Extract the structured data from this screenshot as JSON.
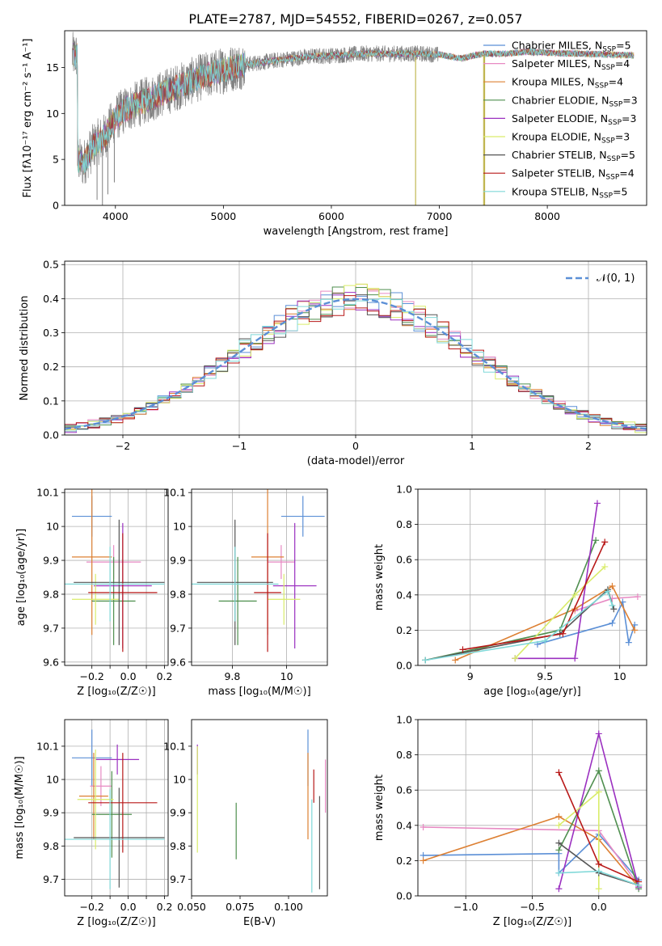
{
  "title": "PLATE=2787, MJD=54552, FIBERID=0267, z=0.057",
  "colors": {
    "Chabrier MILES": "#5b8fd6",
    "Salpeter MILES": "#e78ac3",
    "Kroupa MILES": "#dd8033",
    "Chabrier ELODIE": "#4f8f4f",
    "Salpeter ELODIE": "#9b30c0",
    "Kroupa ELODIE": "#d9ec6a",
    "Chabrier STELIB": "#555555",
    "Salpeter STELIB": "#b81818",
    "Kroupa STELIB": "#7fd8d8",
    "data": "#808080",
    "normal": "#5b8fd6"
  },
  "chart_data": [
    {
      "type": "line",
      "xlabel": "wavelength [Angstrom, rest frame]",
      "ylabel": "Flux [fλ10⁻¹⁷ erg cm⁻² s⁻¹ A⁻¹]",
      "xlim": [
        3530,
        8920
      ],
      "ylim": [
        0,
        19
      ],
      "xticks": [
        4000,
        5000,
        6000,
        7000,
        8000
      ],
      "yticks": [
        0,
        5,
        10,
        15
      ],
      "grid": false,
      "legend_placement": "right",
      "legend": [
        "Chabrier MILES, N_SSP=5",
        "Salpeter MILES, N_SSP=4",
        "Kroupa MILES, N_SSP=4",
        "Chabrier ELODIE, N_SSP=3",
        "Salpeter ELODIE, N_SSP=3",
        "Kroupa ELODIE, N_SSP=3",
        "Chabrier STELIB, N_SSP=5",
        "Salpeter STELIB, N_SSP=4",
        "Kroupa STELIB, N_SSP=5"
      ],
      "legend_nssp": [
        5,
        4,
        4,
        3,
        3,
        3,
        5,
        4,
        5
      ],
      "continuum_points": [
        [
          3650,
          5
        ],
        [
          3700,
          4.5
        ],
        [
          3800,
          6.5
        ],
        [
          3900,
          7.5
        ],
        [
          4000,
          9.5
        ],
        [
          4100,
          10.5
        ],
        [
          4300,
          11.5
        ],
        [
          4500,
          12.5
        ],
        [
          4800,
          14
        ],
        [
          5000,
          14.7
        ],
        [
          5200,
          15.3
        ],
        [
          5500,
          15.8
        ],
        [
          5800,
          16.2
        ],
        [
          6000,
          16.3
        ],
        [
          6300,
          16.5
        ],
        [
          6600,
          16.5
        ],
        [
          6800,
          16.5
        ],
        [
          7000,
          16.4
        ],
        [
          7200,
          16
        ],
        [
          7400,
          16.5
        ],
        [
          7600,
          16.5
        ],
        [
          7800,
          16.7
        ],
        [
          8000,
          16.6
        ],
        [
          8300,
          16.5
        ],
        [
          8600,
          16.4
        ],
        [
          8800,
          16.3
        ]
      ],
      "data_xrange": [
        3600,
        8800
      ],
      "spikes": [
        [
          3830,
          0.6
        ],
        [
          3880,
          0
        ],
        [
          3930,
          1.2
        ],
        [
          3990,
          2.5
        ],
        [
          6780,
          0
        ],
        [
          7410,
          0
        ],
        [
          7420,
          0
        ]
      ]
    },
    {
      "type": "step",
      "xlabel": "(data-model)/error",
      "ylabel": "Normed distribution",
      "xlim": [
        -2.5,
        2.5
      ],
      "ylim": [
        0,
        0.51
      ],
      "xticks": [
        -2,
        -1,
        0,
        1,
        2
      ],
      "yticks": [
        0.0,
        0.1,
        0.2,
        0.3,
        0.4,
        0.5
      ],
      "grid": true,
      "legend_placement": "upper right",
      "legend": [
        "𝒩(0, 1)"
      ],
      "bin_width": 0.1,
      "bins_from": -2.5
    },
    {
      "type": "errorbar",
      "xlabel": "Z [log₁₀(Z/Z☉)]",
      "ylabel": "age  [log₁₀(age/yr)]",
      "xlim": [
        -0.35,
        0.22
      ],
      "ylim": [
        9.59,
        10.11
      ],
      "xticks": [
        -0.2,
        -0.1,
        0.0,
        0.1,
        0.2
      ],
      "xticklabels": [
        "−0.2",
        "",
        "0.0",
        "",
        "0.2"
      ],
      "yticks": [
        9.6,
        9.7,
        9.8,
        9.9,
        10.0,
        10.1
      ],
      "grid": true,
      "points": [
        {
          "name": "Chabrier MILES",
          "x": -0.2,
          "xerr": 0.11,
          "y": 10.03,
          "yerr": 0.06
        },
        {
          "name": "Salpeter MILES",
          "x": -0.08,
          "xerr": 0.15,
          "y": 9.895,
          "yerr": 0.05
        },
        {
          "name": "Kroupa MILES",
          "x": -0.2,
          "xerr": 0.11,
          "y": 9.91,
          "yerr": 0.23
        },
        {
          "name": "Chabrier ELODIE",
          "x": -0.08,
          "xerr": 0.12,
          "y": 9.78,
          "yerr": 0.13
        },
        {
          "name": "Salpeter ELODIE",
          "x": -0.03,
          "xerr": 0.16,
          "y": 9.825,
          "yerr": 0.185
        },
        {
          "name": "Kroupa ELODIE",
          "x": -0.18,
          "xerr": 0.13,
          "y": 9.785,
          "yerr": 0.075
        },
        {
          "name": "Chabrier STELIB",
          "x": -0.05,
          "xerr": 0.25,
          "y": 9.835,
          "yerr": 0.185
        },
        {
          "name": "Salpeter STELIB",
          "x": -0.03,
          "xerr": 0.19,
          "y": 9.805,
          "yerr": 0.175
        },
        {
          "name": "Kroupa STELIB",
          "x": -0.1,
          "xerr": 0.3,
          "y": 9.83,
          "yerr": 0.11
        }
      ]
    },
    {
      "type": "errorbar",
      "xlabel": "mass [log₁₀(M/M☉)]",
      "xlim": [
        9.65,
        10.15
      ],
      "ylim": [
        9.59,
        10.11
      ],
      "xticks": [
        9.8,
        10.0
      ],
      "yticks": [
        9.6,
        9.7,
        9.8,
        9.9,
        10.0,
        10.1
      ],
      "grid": true,
      "points": [
        {
          "name": "Chabrier MILES",
          "x": 10.06,
          "xerr": 0.08,
          "y": 10.03,
          "yerr": 0.06
        },
        {
          "name": "Salpeter MILES",
          "x": 9.98,
          "xerr": 0.05,
          "y": 9.895,
          "yerr": 0.05
        },
        {
          "name": "Kroupa MILES",
          "x": 9.93,
          "xerr": 0.06,
          "y": 9.91,
          "yerr": 0.23
        },
        {
          "name": "Chabrier ELODIE",
          "x": 9.82,
          "xerr": 0.07,
          "y": 9.78,
          "yerr": 0.13
        },
        {
          "name": "Salpeter ELODIE",
          "x": 10.03,
          "xerr": 0.08,
          "y": 9.825,
          "yerr": 0.185
        },
        {
          "name": "Kroupa ELODIE",
          "x": 9.99,
          "xerr": 0.06,
          "y": 9.785,
          "yerr": 0.075
        },
        {
          "name": "Chabrier STELIB",
          "x": 9.81,
          "xerr": 0.14,
          "y": 9.835,
          "yerr": 0.185
        },
        {
          "name": "Salpeter STELIB",
          "x": 9.93,
          "xerr": 0.05,
          "y": 9.805,
          "yerr": 0.175
        },
        {
          "name": "Kroupa STELIB",
          "x": 9.81,
          "xerr": 0.16,
          "y": 9.83,
          "yerr": 0.11
        }
      ]
    },
    {
      "type": "line",
      "xlabel": "age  [log₁₀(age/yr)]",
      "ylabel": "mass weight",
      "xlim": [
        8.65,
        10.18
      ],
      "ylim": [
        0,
        1
      ],
      "xticks": [
        9.0,
        9.5,
        10.0
      ],
      "yticks": [
        0.0,
        0.2,
        0.4,
        0.6,
        0.8,
        1.0
      ],
      "grid": true,
      "series": [
        {
          "name": "Chabrier MILES",
          "x": [
            9.45,
            9.95,
            10.02,
            10.06,
            10.1
          ],
          "y": [
            0.12,
            0.24,
            0.36,
            0.13,
            0.23
          ]
        },
        {
          "name": "Salpeter MILES",
          "x": [
            9.7,
            9.95,
            10.12
          ],
          "y": [
            0.31,
            0.38,
            0.39
          ]
        },
        {
          "name": "Kroupa MILES",
          "x": [
            8.9,
            9.7,
            9.95,
            10.1
          ],
          "y": [
            0.03,
            0.32,
            0.45,
            0.2
          ]
        },
        {
          "name": "Chabrier ELODIE",
          "x": [
            8.7,
            9.6,
            9.84
          ],
          "y": [
            0.03,
            0.2,
            0.71
          ]
        },
        {
          "name": "Salpeter ELODIE",
          "x": [
            9.3,
            9.7,
            9.85
          ],
          "y": [
            0.04,
            0.04,
            0.92
          ]
        },
        {
          "name": "Kroupa ELODIE",
          "x": [
            9.3,
            9.7,
            9.9
          ],
          "y": [
            0.04,
            0.4,
            0.56
          ]
        },
        {
          "name": "Chabrier STELIB",
          "x": [
            8.7,
            9.6,
            9.92,
            9.96
          ],
          "y": [
            0.03,
            0.18,
            0.43,
            0.32
          ]
        },
        {
          "name": "Salpeter STELIB",
          "x": [
            8.95,
            9.62,
            9.9
          ],
          "y": [
            0.09,
            0.18,
            0.7
          ]
        },
        {
          "name": "Kroupa STELIB",
          "x": [
            8.7,
            9.5,
            9.92,
            9.95
          ],
          "y": [
            0.03,
            0.14,
            0.42,
            0.34
          ]
        }
      ]
    },
    {
      "type": "errorbar",
      "xlabel": "Z [log₁₀(Z/Z☉)]",
      "ylabel": "mass [log₁₀(M/M☉)]",
      "xlim": [
        -0.35,
        0.22
      ],
      "ylim": [
        9.65,
        10.18
      ],
      "xticks": [
        -0.2,
        -0.1,
        0.0,
        0.1,
        0.2
      ],
      "xticklabels": [
        "−0.2",
        "",
        "0.0",
        "",
        "0.2"
      ],
      "yticks": [
        9.7,
        9.8,
        9.9,
        10.0,
        10.1
      ],
      "grid": true,
      "points": [
        {
          "name": "Chabrier MILES",
          "x": -0.2,
          "xerr": 0.11,
          "y": 10.065,
          "yerr": 0.085
        },
        {
          "name": "Salpeter MILES",
          "x": -0.15,
          "xerr": 0.06,
          "y": 9.98,
          "yerr": 0.06
        },
        {
          "name": "Kroupa MILES",
          "x": -0.19,
          "xerr": 0.08,
          "y": 9.95,
          "yerr": 0.13
        },
        {
          "name": "Chabrier ELODIE",
          "x": -0.09,
          "xerr": 0.11,
          "y": 9.895,
          "yerr": 0.13
        },
        {
          "name": "Salpeter ELODIE",
          "x": -0.06,
          "xerr": 0.12,
          "y": 10.06,
          "yerr": 0.045
        },
        {
          "name": "Kroupa ELODIE",
          "x": -0.18,
          "xerr": 0.1,
          "y": 9.94,
          "yerr": 0.15
        },
        {
          "name": "Chabrier STELIB",
          "x": -0.05,
          "xerr": 0.25,
          "y": 9.825,
          "yerr": 0.15
        },
        {
          "name": "Salpeter STELIB",
          "x": -0.03,
          "xerr": 0.19,
          "y": 9.93,
          "yerr": 0.15
        },
        {
          "name": "Kroupa STELIB",
          "x": -0.1,
          "xerr": 0.3,
          "y": 9.82,
          "yerr": 0.15
        }
      ]
    },
    {
      "type": "errorbar",
      "xlabel": "E(B-V)",
      "xlim": [
        0.05,
        0.12
      ],
      "ylim": [
        9.65,
        10.18
      ],
      "xticks": [
        0.05,
        0.075,
        0.1
      ],
      "xticklabels": [
        "0.050",
        "0.075",
        "0.100"
      ],
      "yticks": [
        9.7,
        9.8,
        9.9,
        10.0,
        10.1
      ],
      "grid": false,
      "points": [
        {
          "name": "Chabrier MILES",
          "x": 0.11,
          "xerr": 0,
          "y": 10.065,
          "yerr": 0.085
        },
        {
          "name": "Salpeter MILES",
          "x": 0.119,
          "xerr": 0,
          "y": 9.98,
          "yerr": 0.08
        },
        {
          "name": "Kroupa MILES",
          "x": 0.11,
          "xerr": 0,
          "y": 9.95,
          "yerr": 0.13
        },
        {
          "name": "Chabrier ELODIE",
          "x": 0.073,
          "xerr": 0,
          "y": 9.845,
          "yerr": 0.085
        },
        {
          "name": "Salpeter ELODIE",
          "x": 0.053,
          "xerr": 0,
          "y": 10.06,
          "yerr": 0.045
        },
        {
          "name": "Kroupa ELODIE",
          "x": 0.053,
          "xerr": 0,
          "y": 9.94,
          "yerr": 0.16
        },
        {
          "name": "Chabrier STELIB",
          "x": 0.116,
          "xerr": 0,
          "y": 9.81,
          "yerr": 0.14
        },
        {
          "name": "Salpeter STELIB",
          "x": 0.113,
          "xerr": 0,
          "y": 9.98,
          "yerr": 0.05
        },
        {
          "name": "Kroupa STELIB",
          "x": 0.112,
          "xerr": 0,
          "y": 9.8,
          "yerr": 0.14
        }
      ]
    },
    {
      "type": "line",
      "xlabel": "Z [log₁₀(Z/Z☉)]",
      "ylabel": "mass weight",
      "xlim": [
        -1.36,
        0.36
      ],
      "ylim": [
        0,
        1
      ],
      "xticks": [
        -1.0,
        -0.5,
        0.0
      ],
      "xticklabels": [
        "−1.0",
        "−0.5",
        "0.0"
      ],
      "yticks": [
        0.0,
        0.2,
        0.4,
        0.6,
        0.8,
        1.0
      ],
      "grid": true,
      "series": [
        {
          "name": "Chabrier MILES",
          "x": [
            -1.32,
            -0.3,
            -0.3,
            0.0,
            0.3
          ],
          "y": [
            0.23,
            0.24,
            0.13,
            0.35,
            0.09
          ]
        },
        {
          "name": "Salpeter MILES",
          "x": [
            -1.32,
            0.0,
            0.3
          ],
          "y": [
            0.39,
            0.37,
            0.06
          ]
        },
        {
          "name": "Kroupa MILES",
          "x": [
            -1.32,
            -0.3,
            0.0,
            0.3
          ],
          "y": [
            0.2,
            0.45,
            0.32,
            0.05
          ]
        },
        {
          "name": "Chabrier ELODIE",
          "x": [
            -0.3,
            0.0,
            0.3
          ],
          "y": [
            0.26,
            0.71,
            0.04
          ]
        },
        {
          "name": "Salpeter ELODIE",
          "x": [
            -0.3,
            0.0,
            0.3
          ],
          "y": [
            0.04,
            0.92,
            0.05
          ]
        },
        {
          "name": "Kroupa ELODIE",
          "x": [
            -0.3,
            0.0,
            0.0
          ],
          "y": [
            0.4,
            0.59,
            0.04
          ]
        },
        {
          "name": "Chabrier STELIB",
          "x": [
            -0.3,
            0.0,
            0.3
          ],
          "y": [
            0.3,
            0.13,
            0.06
          ]
        },
        {
          "name": "Salpeter STELIB",
          "x": [
            -0.3,
            0.0,
            0.3
          ],
          "y": [
            0.7,
            0.18,
            0.08
          ]
        },
        {
          "name": "Kroupa STELIB",
          "x": [
            -0.3,
            0.0,
            0.3
          ],
          "y": [
            0.13,
            0.14,
            0.06
          ]
        }
      ]
    }
  ]
}
